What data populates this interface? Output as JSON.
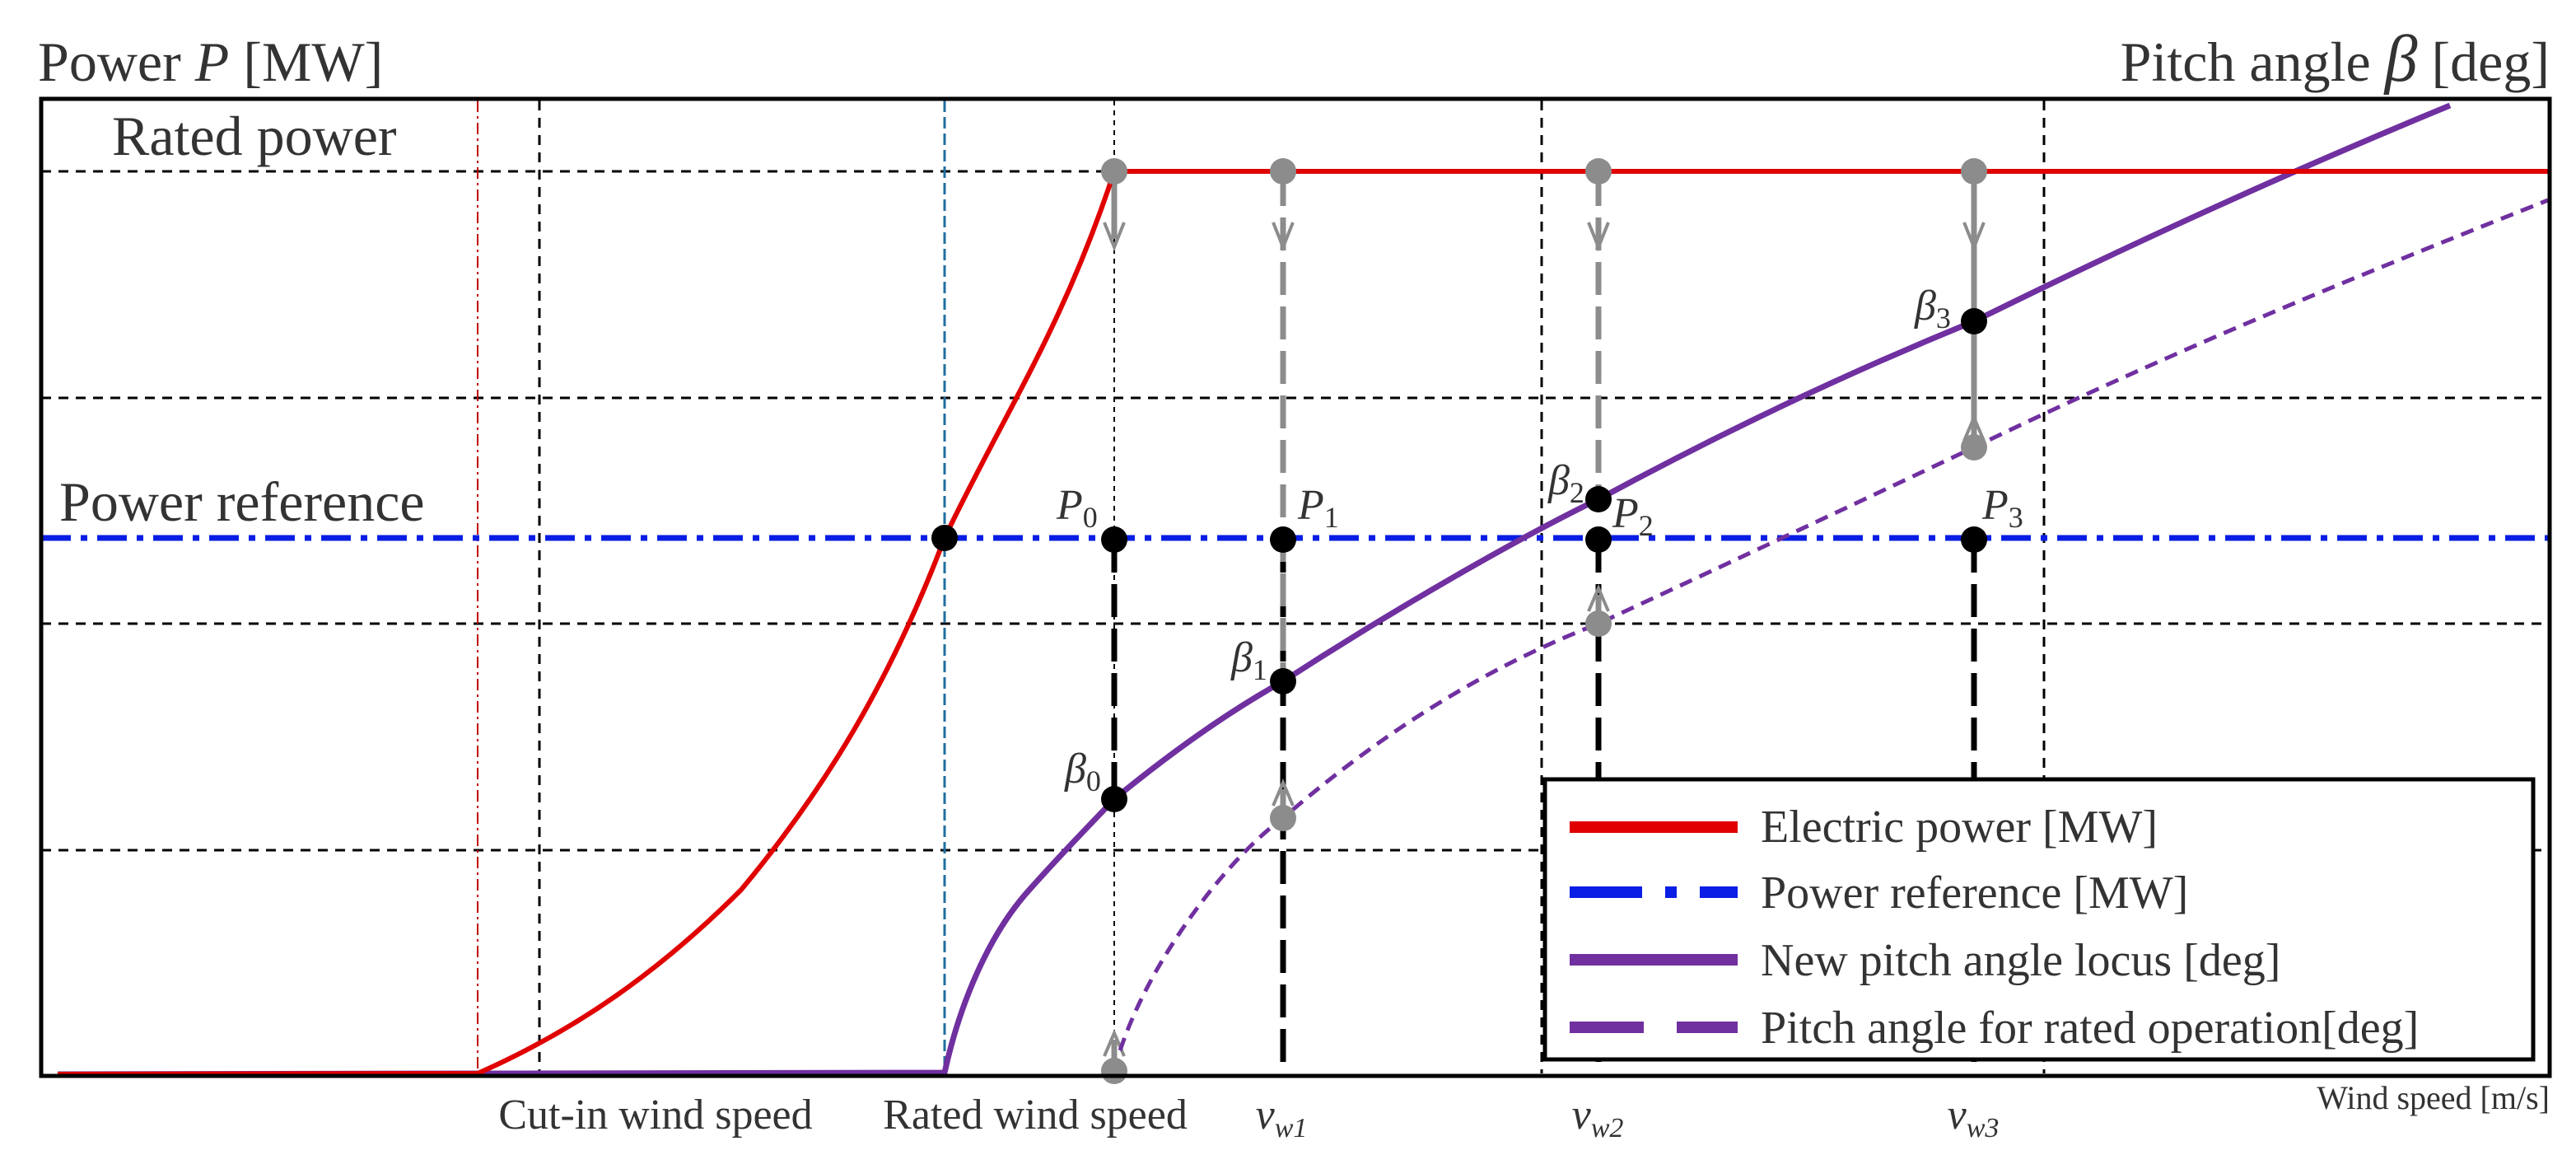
{
  "diagram": {
    "y_left_label": "Power P [MW]",
    "y_left_label_prefix": "Power ",
    "y_left_label_var": "P",
    "y_left_label_unit": " [MW]",
    "y_right_label_prefix": "Pitch angle ",
    "y_right_label_var": "β",
    "y_right_label_unit": " [deg]",
    "rated_power_label": "Rated power",
    "power_reference_label": "Power reference",
    "x_axis_label": "Wind speed [m/s]",
    "x_ticks": {
      "cut_in": "Cut-in wind speed",
      "rated": "Rated wind speed",
      "vw1": {
        "base": "v",
        "sub": "w1"
      },
      "vw2": {
        "base": "v",
        "sub": "w2"
      },
      "vw3": {
        "base": "v",
        "sub": "w3"
      }
    },
    "points": {
      "P0": {
        "base": "P",
        "sub": "0"
      },
      "P1": {
        "base": "P",
        "sub": "1"
      },
      "P2": {
        "base": "P",
        "sub": "2"
      },
      "P3": {
        "base": "P",
        "sub": "3"
      },
      "b0": {
        "base": "β",
        "sub": "0"
      },
      "b1": {
        "base": "β",
        "sub": "1"
      },
      "b2": {
        "base": "β",
        "sub": "2"
      },
      "b3": {
        "base": "β",
        "sub": "3"
      }
    },
    "legend": [
      "Electric power [MW]",
      "Power reference [MW]",
      "New pitch angle locus [deg]",
      "Pitch angle for rated operation[deg]"
    ],
    "colors": {
      "electric_power": "#e00000",
      "power_reference": "#0a1ee6",
      "pitch_locus": "#7030a0",
      "rated_pitch": "#7030a0",
      "marker_gray": "#8c8c8c",
      "marker_black": "#000000"
    }
  }
}
